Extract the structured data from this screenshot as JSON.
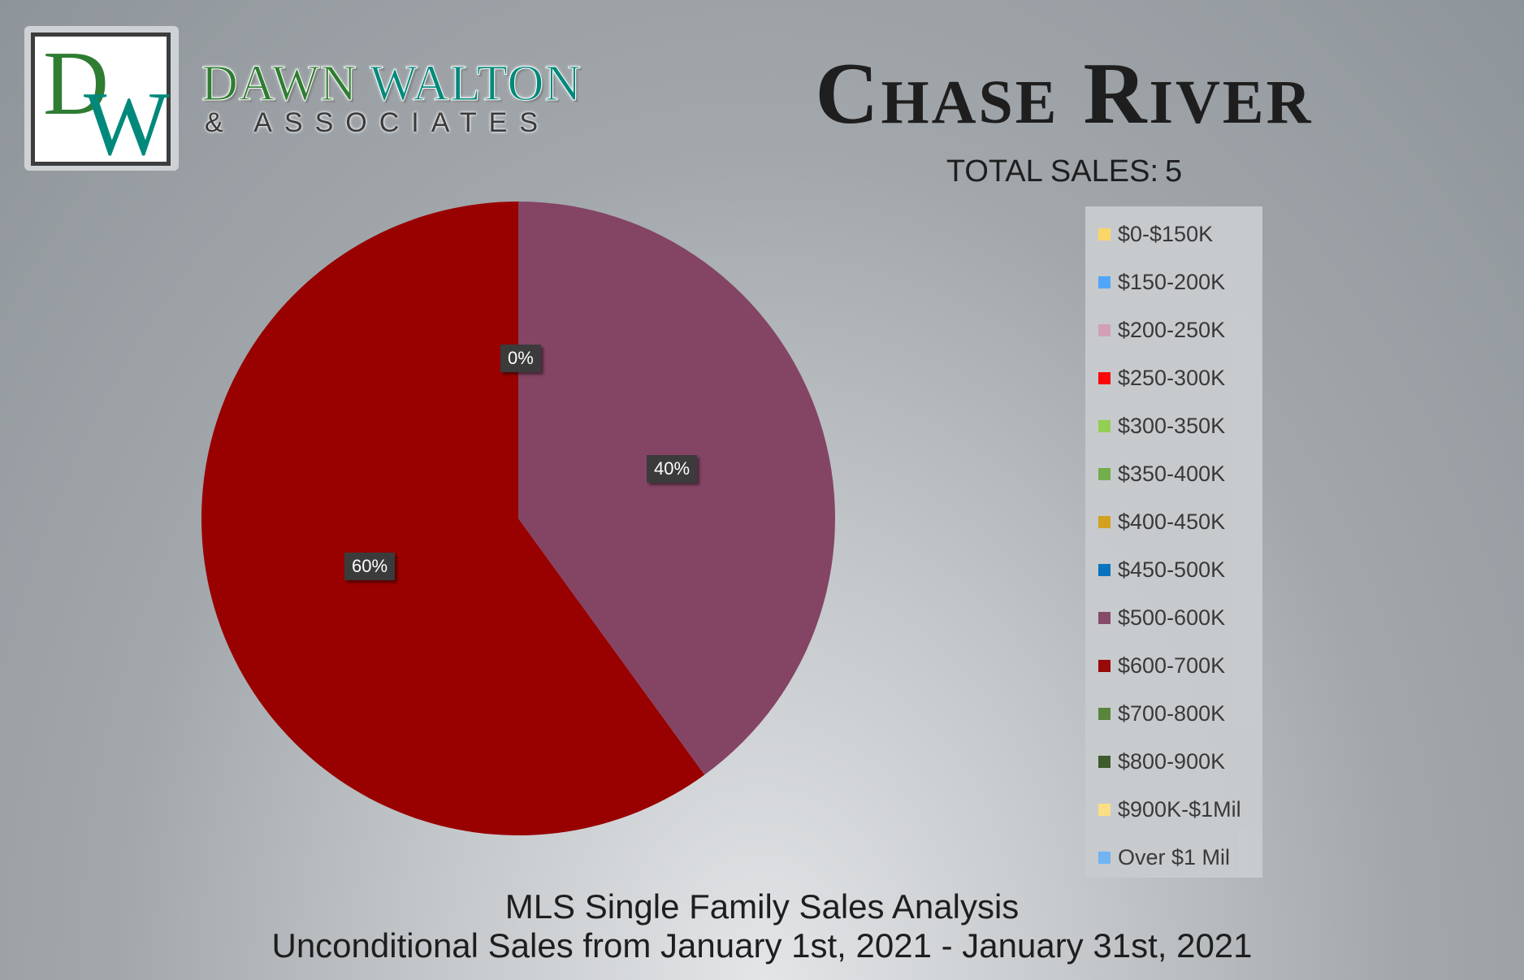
{
  "brand": {
    "logo_letters": "DW",
    "name_first": "DAWN",
    "name_last": "WALTON",
    "sub": "& ASSOCIATES"
  },
  "header": {
    "title": "Chase River",
    "total_label": "TOTAL SALES:",
    "total_value": "5"
  },
  "footer": {
    "line1": "MLS Single Family Sales Analysis",
    "line2": "Unconditional Sales from January 1st, 2021 - January 31st, 2021"
  },
  "chart_data": {
    "type": "pie",
    "title": "Chase River",
    "legend_position": "right",
    "categories": [
      "$0-$150K",
      "$150-200K",
      "$200-250K",
      "$250-300K",
      "$300-350K",
      "$350-400K",
      "$400-450K",
      "$450-500K",
      "$500-600K",
      "$600-700K",
      "$700-800K",
      "$800-900K",
      "$900K-$1Mil",
      "Over $1 Mil"
    ],
    "values": [
      0,
      0,
      0,
      0,
      0,
      0,
      0,
      0,
      40,
      60,
      0,
      0,
      0,
      0
    ],
    "colors": [
      "#ffd966",
      "#4da6ff",
      "#d4a0b8",
      "#ff0000",
      "#92d050",
      "#70ad47",
      "#d4a017",
      "#0070c0",
      "#844565",
      "#990000",
      "#548235",
      "#375623",
      "#ffe082",
      "#6cb4f5"
    ],
    "data_labels": [
      {
        "text": "0%"
      },
      {
        "text": "40%"
      },
      {
        "text": "60%"
      }
    ]
  }
}
